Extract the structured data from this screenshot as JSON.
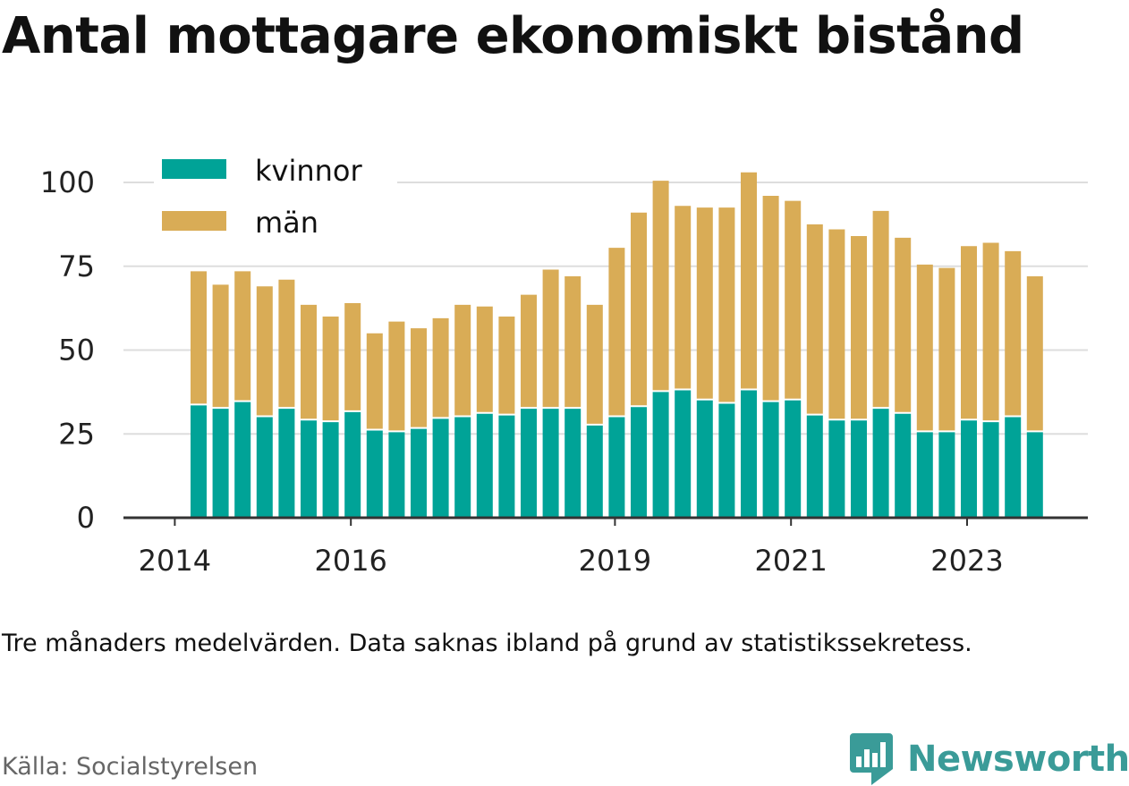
{
  "title": "Antal mottagare ekonomiskt bistånd",
  "note": "Tre månaders medelvärden. Data saknas ibland på grund av statistikssekretess.",
  "source": "Källa: Socialstyrelsen",
  "brand": "Newsworthy",
  "colors": {
    "kvinnor": "#00a397",
    "man": "#d9ac56",
    "grid": "#dddddd",
    "axis": "#333333",
    "brand": "#3a9b98"
  },
  "chart_data": {
    "type": "bar",
    "stacked": true,
    "x_ticks": [
      "2014",
      "2016",
      "2019",
      "2021",
      "2023"
    ],
    "y_ticks": [
      "0",
      "25",
      "50",
      "75",
      "100"
    ],
    "ylim": [
      0,
      105
    ],
    "grid": true,
    "legend_position": "top-left",
    "series": [
      {
        "name": "kvinnor",
        "values": [
          33.5,
          32.5,
          34.5,
          30,
          32.5,
          29,
          28.5,
          31.5,
          26,
          25.5,
          26.5,
          29.5,
          30,
          31,
          30.5,
          32.5,
          32.5,
          32.5,
          27.5,
          30,
          33,
          37.5,
          38,
          35,
          34,
          38,
          34.5,
          35,
          30.5,
          29,
          29,
          32.5,
          31,
          25.5,
          25.5,
          29,
          28.5,
          30,
          25.5
        ]
      },
      {
        "name": "män",
        "values": [
          40,
          37,
          39,
          39,
          38.5,
          34.5,
          31.5,
          32.5,
          29,
          33,
          30,
          30,
          33.5,
          32,
          29.5,
          34,
          41.5,
          39.5,
          36,
          50.5,
          58,
          63,
          55,
          57.5,
          58.5,
          65,
          61.5,
          59.5,
          57,
          57,
          55,
          59,
          52.5,
          50,
          49,
          52,
          53.5,
          49.5,
          46.5
        ]
      }
    ]
  }
}
